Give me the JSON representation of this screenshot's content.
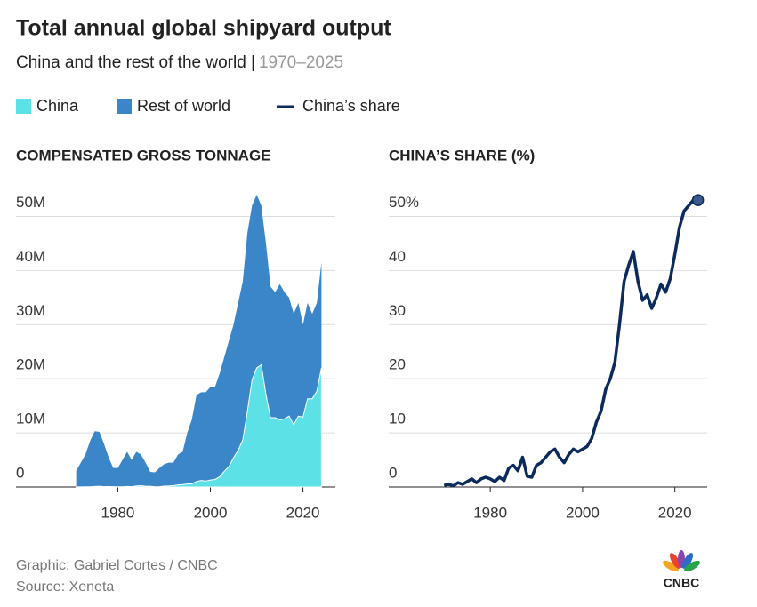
{
  "title": "Total annual global shipyard output",
  "subtitle": "China and the rest of the world |",
  "date_range": "1970–2025",
  "credit": "Graphic: Gabriel Cortes / CNBC",
  "source": "Source: Xeneta",
  "logo": "CNBC",
  "chart_data": [
    {
      "type": "area",
      "stacked": true,
      "title": "COMPENSATED GROSS TONNAGE",
      "x": [
        1971,
        1972,
        1973,
        1974,
        1975,
        1976,
        1977,
        1978,
        1979,
        1980,
        1981,
        1982,
        1983,
        1984,
        1985,
        1986,
        1987,
        1988,
        1989,
        1990,
        1991,
        1992,
        1993,
        1994,
        1995,
        1996,
        1997,
        1998,
        1999,
        2000,
        2001,
        2002,
        2003,
        2004,
        2005,
        2006,
        2007,
        2008,
        2009,
        2010,
        2011,
        2012,
        2013,
        2014,
        2015,
        2016,
        2017,
        2018,
        2019,
        2020,
        2021,
        2022,
        2023,
        2024
      ],
      "series": [
        {
          "name": "China",
          "color": "#5ce1e6",
          "values": [
            20000.0,
            30000.0,
            50000.0,
            50000.0,
            100000.0,
            150000.0,
            70000.0,
            80000.0,
            60000.0,
            50000.0,
            50000.0,
            100000.0,
            60000.0,
            200000.0,
            250000.0,
            150000.0,
            150000.0,
            50000.0,
            60000.0,
            170000.0,
            200000.0,
            250000.0,
            400000.0,
            450000.0,
            550000.0,
            600000.0,
            1000000.0,
            1200000.0,
            1100000.0,
            1300000.0,
            1400000.0,
            1900000.0,
            2900000.0,
            3800000.0,
            5400000.0,
            6800000.0,
            8700000.0,
            14000000.0,
            19800000.0,
            22000000.0,
            22600000.0,
            17100000.0,
            12800000.0,
            12800000.0,
            12400000.0,
            12600000.0,
            13100000.0,
            11500000.0,
            13100000.0,
            12900000.0,
            16300000.0,
            16300000.0,
            17700000.0,
            22000000.0
          ]
        },
        {
          "name": "Rest of world",
          "color": "#3a86c8",
          "values": [
            2980000.0,
            4470000.0,
            5950000.0,
            8450000.0,
            10200000.0,
            10050000.0,
            7930000.0,
            5420000.0,
            3440000.0,
            3450000.0,
            4950000.0,
            6400000.0,
            4940000.0,
            6300000.0,
            5750000.0,
            4350000.0,
            2650000.0,
            2650000.0,
            3440000.0,
            4030000.0,
            4300000.0,
            4250000.0,
            5600000.0,
            6050000.0,
            9450000.0,
            11900000.0,
            16000000.0,
            16300000.0,
            16400000.0,
            17200000.0,
            17100000.0,
            19100000.0,
            21100000.0,
            23200000.0,
            24600000.0,
            27200000.0,
            29300000.0,
            33000000.0,
            32200000.0,
            32000000.0,
            29400000.0,
            27900000.0,
            24200000.0,
            23200000.0,
            25100000.0,
            23400000.0,
            21900000.0,
            20500000.0,
            20900000.0,
            17100000.0,
            17700000.0,
            15700000.0,
            16300000.0,
            19500000.0
          ]
        }
      ],
      "xlim": [
        1958,
        2027
      ],
      "xticks": [
        1980,
        2000,
        2020
      ],
      "ylim": [
        0,
        55000000.0
      ],
      "yticks": [
        0,
        {
          "value": 10000000.0,
          "label": "10M"
        },
        {
          "value": 20000000.0,
          "label": "20M"
        },
        {
          "value": 30000000.0,
          "label": "30M"
        },
        {
          "value": 40000000.0,
          "label": "40M"
        },
        {
          "value": 50000000.0,
          "label": "50M"
        }
      ],
      "grid": true
    },
    {
      "type": "line",
      "title": "CHINA’S SHARE (%)",
      "marker_last": true,
      "x": [
        1970,
        1971,
        1972,
        1973,
        1974,
        1975,
        1976,
        1977,
        1978,
        1979,
        1980,
        1981,
        1982,
        1983,
        1984,
        1985,
        1986,
        1987,
        1988,
        1989,
        1990,
        1991,
        1992,
        1993,
        1994,
        1995,
        1996,
        1997,
        1998,
        1999,
        2000,
        2001,
        2002,
        2003,
        2004,
        2005,
        2006,
        2007,
        2008,
        2009,
        2010,
        2011,
        2012,
        2013,
        2014,
        2015,
        2016,
        2017,
        2018,
        2019,
        2020,
        2021,
        2022,
        2023,
        2024,
        2025
      ],
      "series": [
        {
          "name": "China’s share",
          "color": "#0d2a5c",
          "values": [
            0.3,
            0.5,
            0.2,
            0.8,
            0.5,
            1,
            1.5,
            0.8,
            1.5,
            1.8,
            1.5,
            1,
            1.8,
            1.2,
            3.5,
            4,
            3,
            5.5,
            2,
            1.8,
            4,
            4.5,
            5.5,
            6.5,
            7,
            5.5,
            4.5,
            6,
            7,
            6.5,
            7,
            7.5,
            9,
            12,
            14,
            18,
            20,
            23,
            30,
            38,
            41,
            43.5,
            38,
            34.5,
            35.5,
            33,
            35,
            37.5,
            36,
            38.5,
            43,
            48,
            51,
            52,
            53,
            53
          ]
        }
      ],
      "xlim": [
        1958,
        2027
      ],
      "xticks": [
        1980,
        2000,
        2020
      ],
      "ylim": [
        0,
        55
      ],
      "yticks": [
        0,
        10,
        20,
        30,
        40,
        {
          "value": 50,
          "label": "50%"
        }
      ],
      "grid": true
    }
  ]
}
